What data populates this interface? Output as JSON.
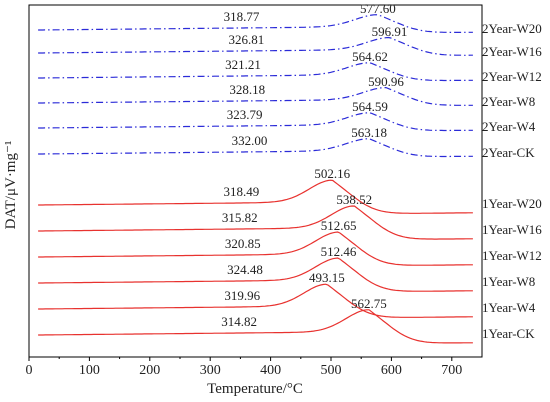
{
  "chart_data": {
    "type": "line",
    "xlabel": "Temperature/°C",
    "ylabel": "DAT/μV·mg⁻¹",
    "xlim": [
      0,
      750
    ],
    "xticks": [
      0,
      100,
      200,
      300,
      400,
      500,
      600,
      700
    ],
    "grid": false,
    "series": [
      {
        "name": "2Year-W20",
        "group": "2Year",
        "color": "#2b2bd8",
        "style": "dashdot",
        "low_label": "318.77",
        "high_label": "577.60",
        "low_temp": 318.77,
        "peak_temp": 577.6
      },
      {
        "name": "2Year-W16",
        "group": "2Year",
        "color": "#2b2bd8",
        "style": "dashdot",
        "low_label": "326.81",
        "high_label": "596.91",
        "low_temp": 326.81,
        "peak_temp": 596.91
      },
      {
        "name": "2Year-W12",
        "group": "2Year",
        "color": "#2b2bd8",
        "style": "dashdot",
        "low_label": "321.21",
        "high_label": "564.62",
        "low_temp": 321.21,
        "peak_temp": 564.62
      },
      {
        "name": "2Year-W8",
        "group": "2Year",
        "color": "#2b2bd8",
        "style": "dashdot",
        "low_label": "328.18",
        "high_label": "590.96",
        "low_temp": 328.18,
        "peak_temp": 590.96
      },
      {
        "name": "2Year-W4",
        "group": "2Year",
        "color": "#2b2bd8",
        "style": "dashdot",
        "low_label": "323.79",
        "high_label": "564.59",
        "low_temp": 323.79,
        "peak_temp": 564.59
      },
      {
        "name": "2Year-CK",
        "group": "2Year",
        "color": "#2b2bd8",
        "style": "dashdot",
        "low_label": "332.00",
        "high_label": "563.18",
        "low_temp": 332.0,
        "peak_temp": 563.18
      },
      {
        "name": "1Year-W20",
        "group": "1Year",
        "color": "#e8322f",
        "style": "solid",
        "low_label": "318.49",
        "high_label": "502.16",
        "low_temp": 318.49,
        "peak_temp": 502.16
      },
      {
        "name": "1Year-W16",
        "group": "1Year",
        "color": "#e8322f",
        "style": "solid",
        "low_label": "315.82",
        "high_label": "538.52",
        "low_temp": 315.82,
        "peak_temp": 538.52
      },
      {
        "name": "1Year-W12",
        "group": "1Year",
        "color": "#e8322f",
        "style": "solid",
        "low_label": "320.85",
        "high_label": "512.65",
        "low_temp": 320.85,
        "peak_temp": 512.65
      },
      {
        "name": "1Year-W8",
        "group": "1Year",
        "color": "#e8322f",
        "style": "solid",
        "low_label": "324.48",
        "high_label": "512.46",
        "low_temp": 324.48,
        "peak_temp": 512.46
      },
      {
        "name": "1Year-W4",
        "group": "1Year",
        "color": "#e8322f",
        "style": "solid",
        "low_label": "319.96",
        "high_label": "493.15",
        "low_temp": 319.96,
        "peak_temp": 493.15
      },
      {
        "name": "1Year-CK",
        "group": "1Year",
        "color": "#e8322f",
        "style": "solid",
        "low_label": "314.82",
        "high_label": "562.75",
        "low_temp": 314.82,
        "peak_temp": 562.75
      }
    ]
  }
}
